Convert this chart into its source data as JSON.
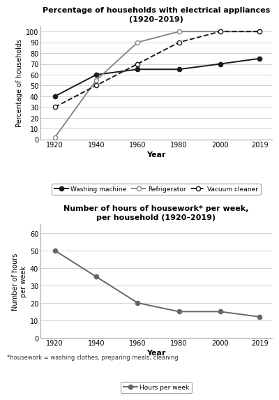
{
  "years": [
    1920,
    1940,
    1960,
    1980,
    2000,
    2019
  ],
  "washing_machine": [
    40,
    60,
    65,
    65,
    70,
    75
  ],
  "refrigerator": [
    2,
    55,
    90,
    100,
    100,
    100
  ],
  "vacuum_cleaner": [
    30,
    50,
    70,
    90,
    100,
    100
  ],
  "hours_per_week": [
    50,
    35,
    20,
    15,
    15,
    12
  ],
  "title1": "Percentage of households with electrical appliances\n(1920–2019)",
  "title2": "Number of hours of housework* per week,\nper household (1920–2019)",
  "ylabel1": "Percentage of households",
  "ylabel2": "Number of hours\nper week",
  "xlabel": "Year",
  "footnote": "*housework = washing clothes, preparing meals, cleaning",
  "ylim1": [
    0,
    105
  ],
  "yticks1": [
    0,
    10,
    20,
    30,
    40,
    50,
    60,
    70,
    80,
    90,
    100
  ],
  "ylim2": [
    0,
    65
  ],
  "yticks2": [
    0,
    10,
    20,
    30,
    40,
    50,
    60
  ],
  "line_color_wm": "#1a1a1a",
  "line_color_ref": "#888888",
  "line_color_vc": "#1a1a1a",
  "line_color_hw": "#666666",
  "bg_color": "#ffffff"
}
